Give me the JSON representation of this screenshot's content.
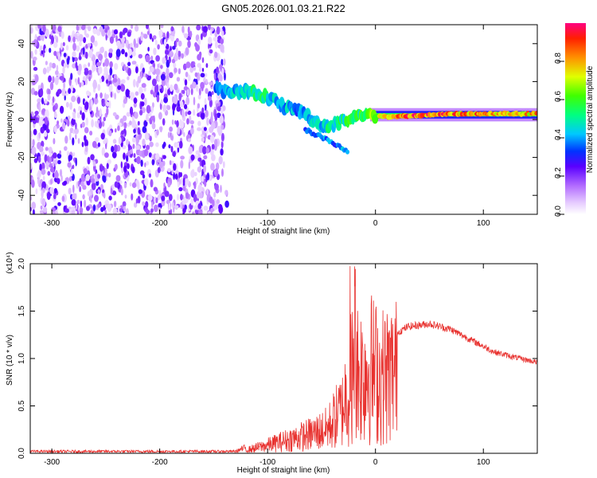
{
  "title": "GN05.2026.001.03.21.R22",
  "colors": {
    "snr_line": "#e8322f",
    "band": "#8a2be2",
    "axis": "#000000"
  },
  "chart_data": [
    {
      "type": "heatmap",
      "name": "spectrogram",
      "xlabel": "Height of straight line (km)",
      "ylabel": "Frequency (Hz)",
      "xlim": [
        -320,
        150
      ],
      "ylim": [
        -50,
        50
      ],
      "x_ticks": [
        -300,
        -200,
        -100,
        0,
        100
      ],
      "y_ticks": [
        -40,
        -20,
        0,
        20,
        40
      ],
      "x_tick_labels": [
        "-300",
        "-200",
        "-100",
        "0",
        "100"
      ],
      "y_tick_labels": [
        "-40",
        "-20",
        "0",
        "20",
        "40"
      ],
      "noise_region": [
        -320,
        -140
      ],
      "signal_track": [
        {
          "x": -148,
          "f": 16,
          "a": 0.35
        },
        {
          "x": -135,
          "f": 14,
          "a": 0.45
        },
        {
          "x": -120,
          "f": 15,
          "a": 0.5
        },
        {
          "x": -105,
          "f": 13,
          "a": 0.55
        },
        {
          "x": -95,
          "f": 10,
          "a": 0.5
        },
        {
          "x": -85,
          "f": 7,
          "a": 0.45
        },
        {
          "x": -70,
          "f": 4,
          "a": 0.4
        },
        {
          "x": -58,
          "f": 0,
          "a": 0.45
        },
        {
          "x": -45,
          "f": -4,
          "a": 0.5
        },
        {
          "x": -35,
          "f": -2,
          "a": 0.55
        },
        {
          "x": -20,
          "f": 1,
          "a": 0.6
        },
        {
          "x": -8,
          "f": 2,
          "a": 0.65
        },
        {
          "x": 10,
          "f": 1.5,
          "a": 0.85
        },
        {
          "x": 40,
          "f": 2,
          "a": 0.95
        },
        {
          "x": 70,
          "f": 3,
          "a": 0.9
        },
        {
          "x": 100,
          "f": 3,
          "a": 0.88
        },
        {
          "x": 130,
          "f": 3,
          "a": 0.85
        },
        {
          "x": 150,
          "f": 3,
          "a": 0.85
        }
      ],
      "colorbar": {
        "label": "Normalized spectral amplitude",
        "range": [
          0,
          1
        ],
        "ticks": [
          0,
          0.2,
          0.4,
          0.6,
          0.8
        ],
        "tick_labels": [
          "0.0",
          "0.2",
          "0.4",
          "0.6",
          "0.8"
        ]
      }
    },
    {
      "type": "line",
      "name": "snr",
      "xlabel": "Height of straight line (km)",
      "ylabel": "SNR (10 * v/v)",
      "scale_label": "(x10⁴)",
      "xlim": [
        -320,
        150
      ],
      "ylim": [
        0,
        2.0
      ],
      "x_ticks": [
        -300,
        -200,
        -100,
        0,
        100
      ],
      "y_ticks": [
        0,
        0.5,
        1.0,
        1.5,
        2.0
      ],
      "x_tick_labels": [
        "-300",
        "-200",
        "-100",
        "0",
        "100"
      ],
      "y_tick_labels": [
        "0.0",
        "0.5",
        "1.0",
        "1.5",
        "2.0"
      ],
      "envelope": [
        {
          "x": -320,
          "y": 0.02
        },
        {
          "x": -130,
          "y": 0.02
        },
        {
          "x": -115,
          "y": 0.08
        },
        {
          "x": -100,
          "y": 0.15
        },
        {
          "x": -80,
          "y": 0.25
        },
        {
          "x": -60,
          "y": 0.35
        },
        {
          "x": -45,
          "y": 0.45
        },
        {
          "x": -35,
          "y": 0.7
        },
        {
          "x": -25,
          "y": 0.95
        },
        {
          "x": -20,
          "y": 1.5
        },
        {
          "x": -15,
          "y": 1.25
        },
        {
          "x": -5,
          "y": 1.35
        },
        {
          "x": 5,
          "y": 1.2
        },
        {
          "x": 15,
          "y": 1.25
        },
        {
          "x": 30,
          "y": 1.35
        },
        {
          "x": 50,
          "y": 1.38
        },
        {
          "x": 70,
          "y": 1.32
        },
        {
          "x": 90,
          "y": 1.2
        },
        {
          "x": 110,
          "y": 1.08
        },
        {
          "x": 130,
          "y": 1.02
        },
        {
          "x": 150,
          "y": 0.97
        }
      ]
    }
  ]
}
